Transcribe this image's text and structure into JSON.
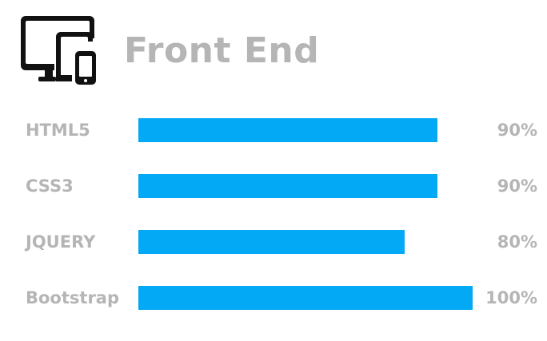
{
  "header": {
    "icon": "devices-icon",
    "title": "Front End"
  },
  "colors": {
    "bar": "#03a9f4",
    "text": "#b5b5b5",
    "icon": "#111111"
  },
  "skills": [
    {
      "name": "HTML5",
      "percent_label": "90%",
      "value": 0.895
    },
    {
      "name": "CSS3",
      "percent_label": "90%",
      "value": 0.895
    },
    {
      "name": "JQUERY",
      "percent_label": "80%",
      "value": 0.797
    },
    {
      "name": "Bootstrap",
      "percent_label": "100%",
      "value": 1.0
    }
  ]
}
